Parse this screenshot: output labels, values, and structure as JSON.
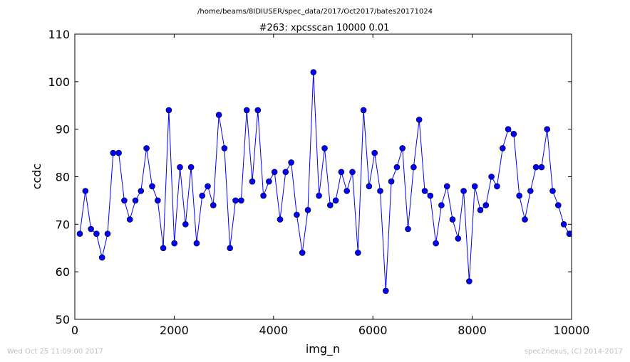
{
  "chart_data": {
    "type": "line",
    "suptitle": "/home/beams/8IDIUSER/spec_data/2017/Oct2017/bates20171024",
    "title": "#263: xpcsscan 10000 0.01",
    "xlabel": "img_n",
    "ylabel": "ccdc",
    "xlim": [
      0,
      10000
    ],
    "ylim": [
      50,
      110
    ],
    "xticks": [
      0,
      2000,
      4000,
      6000,
      8000,
      10000
    ],
    "yticks": [
      50,
      60,
      70,
      80,
      90,
      100,
      110
    ],
    "grid": false,
    "color": "#0000ff",
    "x": [
      100,
      212,
      324,
      436,
      548,
      660,
      772,
      884,
      996,
      1108,
      1220,
      1332,
      1444,
      1556,
      1668,
      1780,
      1892,
      2004,
      2116,
      2228,
      2340,
      2452,
      2564,
      2676,
      2788,
      2900,
      3012,
      3124,
      3236,
      3348,
      3460,
      3572,
      3684,
      3796,
      3908,
      4020,
      4132,
      4244,
      4356,
      4468,
      4580,
      4692,
      4804,
      4916,
      5028,
      5140,
      5252,
      5364,
      5476,
      5588,
      5700,
      5812,
      5924,
      6036,
      6148,
      6260,
      6372,
      6484,
      6596,
      6708,
      6820,
      6932,
      7044,
      7156,
      7268,
      7380,
      7492,
      7604,
      7716,
      7828,
      7940,
      8052,
      8164,
      8276,
      8388,
      8500,
      8612,
      8724,
      8836,
      8948,
      9060,
      9172,
      9284,
      9396,
      9508,
      9620,
      9732,
      9844,
      9956,
      10000
    ],
    "y": [
      68,
      77,
      69,
      68,
      63,
      68,
      85,
      85,
      75,
      71,
      75,
      77,
      86,
      78,
      75,
      65,
      94,
      66,
      82,
      70,
      82,
      66,
      76,
      78,
      74,
      93,
      86,
      65,
      75,
      75,
      94,
      79,
      94,
      76,
      79,
      81,
      71,
      81,
      83,
      72,
      64,
      73,
      102,
      76,
      86,
      74,
      75,
      81,
      77,
      81,
      64,
      94,
      78,
      85,
      77,
      56,
      79,
      82,
      86,
      69,
      82,
      92,
      77,
      76,
      66,
      74,
      78,
      71,
      67,
      77,
      58,
      78,
      73,
      74,
      80,
      78,
      86,
      90,
      89,
      76,
      71,
      77,
      82,
      82,
      90,
      77,
      74,
      70,
      68,
      68
    ]
  },
  "footer": {
    "timestamp": "Wed Oct 25 11:09:00 2017",
    "credit": "spec2nexus, (C) 2014-2017"
  }
}
